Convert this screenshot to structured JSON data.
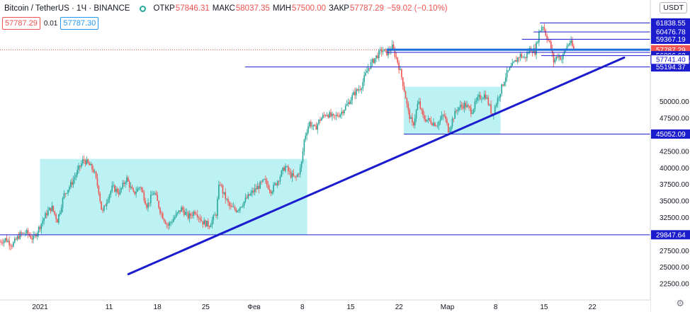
{
  "header": {
    "symbol": "Bitcoin / TetherUS · 1Ч · BINANCE",
    "open_label": "ОТКР",
    "open": "57846.31",
    "high_label": "МАКС",
    "high": "58037.35",
    "low_label": "МИН",
    "low": "57500.00",
    "close_label": "ЗАКР",
    "close": "57787.29",
    "change": "−59.02 (−0.10%)",
    "sell_price": "57787.29",
    "spread": "0.01",
    "buy_price": "57787.30"
  },
  "currency_button": "USDT",
  "settings_icon": "gear-icon",
  "chart_data": {
    "type": "candlestick",
    "symbol": "BTCUSDT",
    "timeframe": "1H",
    "x_ticks": [
      {
        "label": "2021",
        "pos": 1
      },
      {
        "label": "11",
        "pos": 11
      },
      {
        "label": "18",
        "pos": 18
      },
      {
        "label": "25",
        "pos": 25
      },
      {
        "label": "Фев",
        "pos": 32
      },
      {
        "label": "8",
        "pos": 39
      },
      {
        "label": "15",
        "pos": 46
      },
      {
        "label": "22",
        "pos": 53
      },
      {
        "label": "Мар",
        "pos": 60
      },
      {
        "label": "8",
        "pos": 67
      },
      {
        "label": "15",
        "pos": 74
      },
      {
        "label": "22",
        "pos": 81
      }
    ],
    "x_range": [
      -4.8,
      89.4
    ],
    "y_ticks": [
      "22500.00",
      "25000.00",
      "27500.00",
      "30000.00",
      "32500.00",
      "35000.00",
      "37500.00",
      "40000.00",
      "42500.00",
      "45000.00",
      "47500.00",
      "50000.00"
    ],
    "y_top_label": "6",
    "y_range": [
      20000,
      65300
    ],
    "price_path": [
      [
        -4.8,
        28800
      ],
      [
        -4,
        29200
      ],
      [
        -3,
        28300
      ],
      [
        -2,
        29800
      ],
      [
        -1,
        30200
      ],
      [
        0,
        29200
      ],
      [
        1,
        31200
      ],
      [
        2,
        33200
      ],
      [
        2.7,
        34000
      ],
      [
        3.5,
        32000
      ],
      [
        4.5,
        36000
      ],
      [
        5.5,
        37500
      ],
      [
        6.5,
        39600
      ],
      [
        7.3,
        41200
      ],
      [
        8,
        40500
      ],
      [
        8.8,
        39500
      ],
      [
        9.5,
        36500
      ],
      [
        10,
        33000
      ],
      [
        10.8,
        35500
      ],
      [
        11.5,
        37000
      ],
      [
        12.5,
        36200
      ],
      [
        13.5,
        38400
      ],
      [
        14.5,
        36000
      ],
      [
        15.5,
        37200
      ],
      [
        16.5,
        34200
      ],
      [
        17.5,
        36400
      ],
      [
        18.5,
        33200
      ],
      [
        19.5,
        31200
      ],
      [
        20.5,
        32500
      ],
      [
        21.5,
        33800
      ],
      [
        22.5,
        32500
      ],
      [
        23.5,
        33500
      ],
      [
        24.5,
        31800
      ],
      [
        25.5,
        31300
      ],
      [
        26.5,
        33000
      ],
      [
        27,
        38000
      ],
      [
        27.5,
        36200
      ],
      [
        28.5,
        34000
      ],
      [
        29.5,
        33600
      ],
      [
        30.5,
        34800
      ],
      [
        31.5,
        36000
      ],
      [
        32.5,
        37000
      ],
      [
        33.5,
        38000
      ],
      [
        34.5,
        36500
      ],
      [
        35.5,
        38200
      ],
      [
        36.5,
        40200
      ],
      [
        37.2,
        39000
      ],
      [
        38,
        38300
      ],
      [
        38.8,
        40000
      ],
      [
        39.3,
        44500
      ],
      [
        40,
        46800
      ],
      [
        40.8,
        45800
      ],
      [
        41.5,
        47200
      ],
      [
        42.5,
        48200
      ],
      [
        43.5,
        47500
      ],
      [
        44.5,
        48200
      ],
      [
        45.5,
        49500
      ],
      [
        46.5,
        51200
      ],
      [
        47.5,
        52200
      ],
      [
        48.5,
        55000
      ],
      [
        49.5,
        56500
      ],
      [
        50.5,
        57700
      ],
      [
        51.3,
        57300
      ],
      [
        52,
        58200
      ],
      [
        52.7,
        56300
      ],
      [
        53.3,
        54000
      ],
      [
        53.8,
        51500
      ],
      [
        54.3,
        48500
      ],
      [
        55,
        46200
      ],
      [
        55.8,
        50000
      ],
      [
        56.5,
        47500
      ],
      [
        57.5,
        47000
      ],
      [
        58.5,
        46500
      ],
      [
        59.5,
        48000
      ],
      [
        60.2,
        45500
      ],
      [
        60.8,
        47500
      ],
      [
        61.5,
        49000
      ],
      [
        62.5,
        49500
      ],
      [
        63.5,
        48500
      ],
      [
        64.5,
        50500
      ],
      [
        65.5,
        51000
      ],
      [
        66.5,
        48000
      ],
      [
        67.5,
        51000
      ],
      [
        68.5,
        54000
      ],
      [
        69.5,
        55500
      ],
      [
        70.5,
        57000
      ],
      [
        71.2,
        56500
      ],
      [
        72,
        58000
      ],
      [
        72.7,
        57500
      ],
      [
        73.3,
        60500
      ],
      [
        73.8,
        61600
      ],
      [
        74.3,
        60000
      ],
      [
        74.9,
        58500
      ],
      [
        75.4,
        56000
      ],
      [
        76,
        57000
      ],
      [
        76.6,
        56400
      ],
      [
        77.2,
        58200
      ],
      [
        77.8,
        59000
      ],
      [
        78.3,
        57787.29
      ]
    ],
    "candle_spread": 700,
    "horizontal_levels": [
      {
        "price": 61838.55,
        "x_start": 73.4,
        "label": "61838.55",
        "width": 1
      },
      {
        "price": 60476.78,
        "x_start": 72.5,
        "label": "60476.78",
        "width": 1
      },
      {
        "price": 59367.19,
        "x_start": 70.8,
        "label": "59367.19",
        "width": 1
      },
      {
        "price": 57787.29,
        "x_start": -4.8,
        "label": "57787.29",
        "width": 1,
        "dotted": true,
        "current": true
      },
      {
        "price": 57800,
        "x_start": 51.2,
        "width": 3
      },
      {
        "price": 57400,
        "x_start": 51.2,
        "width": 1
      },
      {
        "price": 56896.63,
        "x_start": 73.6,
        "label": "56896.63",
        "width": 1
      },
      {
        "price": 55194.37,
        "x_start": 30.7,
        "label": "55194.37",
        "width": 1
      },
      {
        "price": 45052.09,
        "x_start": 53.7,
        "label": "45052.09",
        "width": 1
      },
      {
        "price": 29847.64,
        "x_start": -4.8,
        "label": "29847.64",
        "width": 1
      }
    ],
    "extra_axis_labels": [
      {
        "price": 56300,
        "label": "57741.40",
        "style": "outline"
      }
    ],
    "countdown_label": "33:55",
    "trend_lines": [
      {
        "from": [
          13.8,
          23900
        ],
        "to": [
          85.6,
          56600
        ],
        "width": 3
      }
    ],
    "rectangles": [
      {
        "x": [
          1,
          39.7
        ],
        "y": [
          29900,
          41300
        ]
      },
      {
        "x": [
          53.7,
          67.7
        ],
        "y": [
          45000,
          52200
        ]
      }
    ]
  }
}
